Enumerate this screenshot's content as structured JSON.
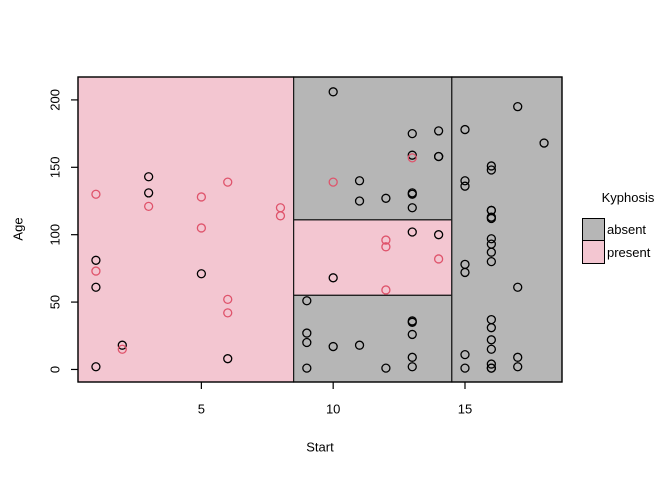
{
  "figure": {
    "xlabel": "Start",
    "ylabel": "Age"
  },
  "legend": {
    "title": "Kyphosis",
    "items": [
      {
        "label": "absent",
        "class": "absent"
      },
      {
        "label": "present",
        "class": "present"
      }
    ]
  },
  "chart_data": {
    "type": "scatter",
    "title": "",
    "xlabel": "Start",
    "ylabel": "Age",
    "xlim": [
      0.32,
      18.68
    ],
    "ylim": [
      -9.3,
      217.0
    ],
    "x_ticks": [
      5,
      10,
      15
    ],
    "y_ticks": [
      0,
      50,
      100,
      150,
      200
    ],
    "grid": false,
    "legend_position": "right",
    "colors": {
      "absent": "#b6b6b6",
      "present": "#f3c6d1",
      "absent_point": "#000000",
      "present_point": "#DF536B",
      "region_border": "#1a1a1a"
    },
    "regions": [
      {
        "class": "present",
        "x": [
          null,
          8.5
        ],
        "y": [
          null,
          null
        ]
      },
      {
        "class": "absent",
        "x": [
          8.5,
          14.5
        ],
        "y": [
          111,
          null
        ]
      },
      {
        "class": "present",
        "x": [
          8.5,
          14.5
        ],
        "y": [
          55,
          111
        ]
      },
      {
        "class": "absent",
        "x": [
          8.5,
          14.5
        ],
        "y": [
          null,
          55
        ]
      },
      {
        "class": "absent",
        "x": [
          14.5,
          null
        ],
        "y": [
          null,
          null
        ]
      }
    ],
    "series": [
      {
        "name": "absent",
        "points": [
          [
            5,
            71
          ],
          [
            14,
            158
          ],
          [
            1,
            2
          ],
          [
            15,
            1
          ],
          [
            16,
            1
          ],
          [
            17,
            61
          ],
          [
            16,
            37
          ],
          [
            16,
            113
          ],
          [
            16,
            148
          ],
          [
            2,
            18
          ],
          [
            12,
            1
          ],
          [
            18,
            168
          ],
          [
            16,
            1
          ],
          [
            15,
            78
          ],
          [
            13,
            175
          ],
          [
            16,
            80
          ],
          [
            9,
            27
          ],
          [
            16,
            22
          ],
          [
            3,
            131
          ],
          [
            13,
            9
          ],
          [
            6,
            8
          ],
          [
            14,
            100
          ],
          [
            16,
            4
          ],
          [
            16,
            151
          ],
          [
            16,
            31
          ],
          [
            11,
            125
          ],
          [
            13,
            130
          ],
          [
            16,
            112
          ],
          [
            11,
            140
          ],
          [
            16,
            93
          ],
          [
            9,
            1
          ],
          [
            9,
            20
          ],
          [
            13,
            35
          ],
          [
            3,
            143
          ],
          [
            1,
            61
          ],
          [
            16,
            97
          ],
          [
            15,
            136
          ],
          [
            13,
            131
          ],
          [
            14,
            177
          ],
          [
            10,
            68
          ],
          [
            17,
            9
          ],
          [
            17,
            2
          ],
          [
            15,
            140
          ],
          [
            15,
            72
          ],
          [
            13,
            2
          ],
          [
            9,
            51
          ],
          [
            13,
            102
          ],
          [
            1,
            81
          ],
          [
            16,
            118
          ],
          [
            16,
            118
          ],
          [
            10,
            17
          ],
          [
            17,
            195
          ],
          [
            13,
            159
          ],
          [
            11,
            18
          ],
          [
            16,
            15
          ],
          [
            14,
            158
          ],
          [
            12,
            127
          ],
          [
            16,
            87
          ],
          [
            10,
            206
          ],
          [
            15,
            11
          ],
          [
            15,
            178
          ],
          [
            13,
            26
          ],
          [
            13,
            120
          ],
          [
            13,
            36
          ]
        ]
      },
      {
        "name": "present",
        "points": [
          [
            5,
            128
          ],
          [
            12,
            59
          ],
          [
            14,
            82
          ],
          [
            5,
            105
          ],
          [
            12,
            96
          ],
          [
            2,
            15
          ],
          [
            6,
            52
          ],
          [
            12,
            91
          ],
          [
            1,
            73
          ],
          [
            10,
            139
          ],
          [
            3,
            121
          ],
          [
            6,
            139
          ],
          [
            8,
            120
          ],
          [
            1,
            130
          ],
          [
            8,
            114
          ],
          [
            13,
            157
          ],
          [
            6,
            42
          ]
        ]
      }
    ]
  }
}
